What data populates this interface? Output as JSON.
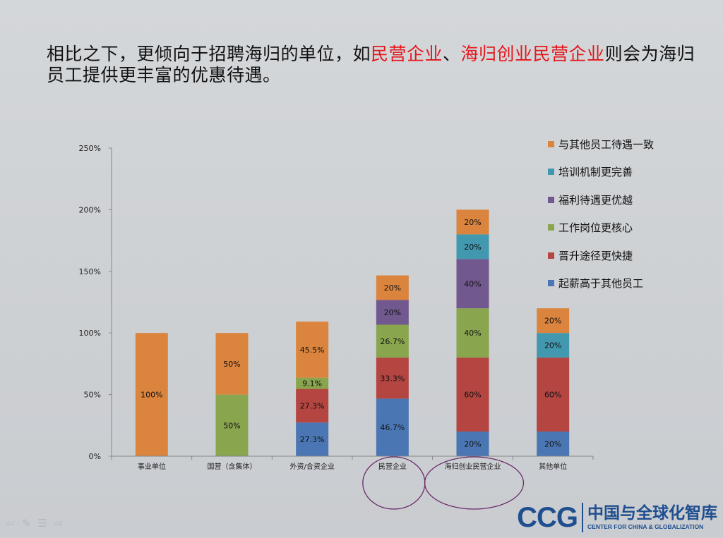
{
  "headline": {
    "part1": "相比之下，更倾向于招聘海归的单位，如",
    "highlight1": "民营企业",
    "sep": "、",
    "highlight2": "海归创业民营企业",
    "part2": "则会为海归员工提供更丰富的优惠待遇。"
  },
  "colors": {
    "起薪高于其他员工": "#4a77b4",
    "晋升途径更快捷": "#b44541",
    "工作岗位更核心": "#89a54e",
    "福利待遇更优越": "#71588f",
    "培训机制更完善": "#4198af",
    "与其他员工待遇一致": "#db843d",
    "highlight_text": "#e4171b",
    "circle": "#6b2a6b",
    "brand": "#1f4f8f"
  },
  "chart_data": {
    "type": "bar",
    "stacked": true,
    "categories": [
      "事业单位",
      "国营（含集体）",
      "外资/合资企业",
      "民营企业",
      "海归创业民营企业",
      "其他单位"
    ],
    "series": [
      {
        "name": "起薪高于其他员工",
        "values": [
          0,
          0,
          27.3,
          46.7,
          20,
          20
        ]
      },
      {
        "name": "晋升途径更快捷",
        "values": [
          0,
          0,
          27.3,
          33.3,
          60,
          60
        ]
      },
      {
        "name": "工作岗位更核心",
        "values": [
          0,
          50,
          9.1,
          26.7,
          40,
          0
        ]
      },
      {
        "name": "福利待遇更优越",
        "values": [
          0,
          0,
          0,
          20,
          40,
          0
        ]
      },
      {
        "name": "培训机制更完善",
        "values": [
          0,
          0,
          0,
          0,
          20,
          20
        ]
      },
      {
        "name": "与其他员工待遇一致",
        "values": [
          100,
          50,
          45.5,
          20,
          20,
          20
        ]
      }
    ],
    "labels": [
      [
        "",
        "",
        "27.3%",
        "46.7%",
        "20%",
        "20%"
      ],
      [
        "",
        "",
        "27.3%",
        "33.3%",
        "60%",
        "60%"
      ],
      [
        "",
        "50%",
        "9.1%",
        "26.7%",
        "40%",
        ""
      ],
      [
        "",
        "",
        "",
        "20%",
        "40%",
        ""
      ],
      [
        "",
        "",
        "",
        "",
        "20%",
        "20%"
      ],
      [
        "100%",
        "50%",
        "45.5%",
        "20%",
        "20%",
        "20%"
      ]
    ],
    "ylim": [
      0,
      250
    ],
    "yticks": [
      "0%",
      "50%",
      "100%",
      "150%",
      "200%",
      "250%"
    ],
    "legend_order": [
      "与其他员工待遇一致",
      "培训机制更完善",
      "福利待遇更优越",
      "工作岗位更核心",
      "晋升途径更快捷",
      "起薪高于其他员工"
    ],
    "highlighted_categories": [
      "民营企业",
      "海归创业民营企业"
    ]
  },
  "logo": {
    "mark": "CCG",
    "cn": "中国与全球化智库",
    "en": "CENTER FOR CHINA & GLOBALIZATION"
  },
  "nav": {
    "prev": "⇦",
    "pen": "✎",
    "menu": "☰",
    "next": "⇨"
  }
}
